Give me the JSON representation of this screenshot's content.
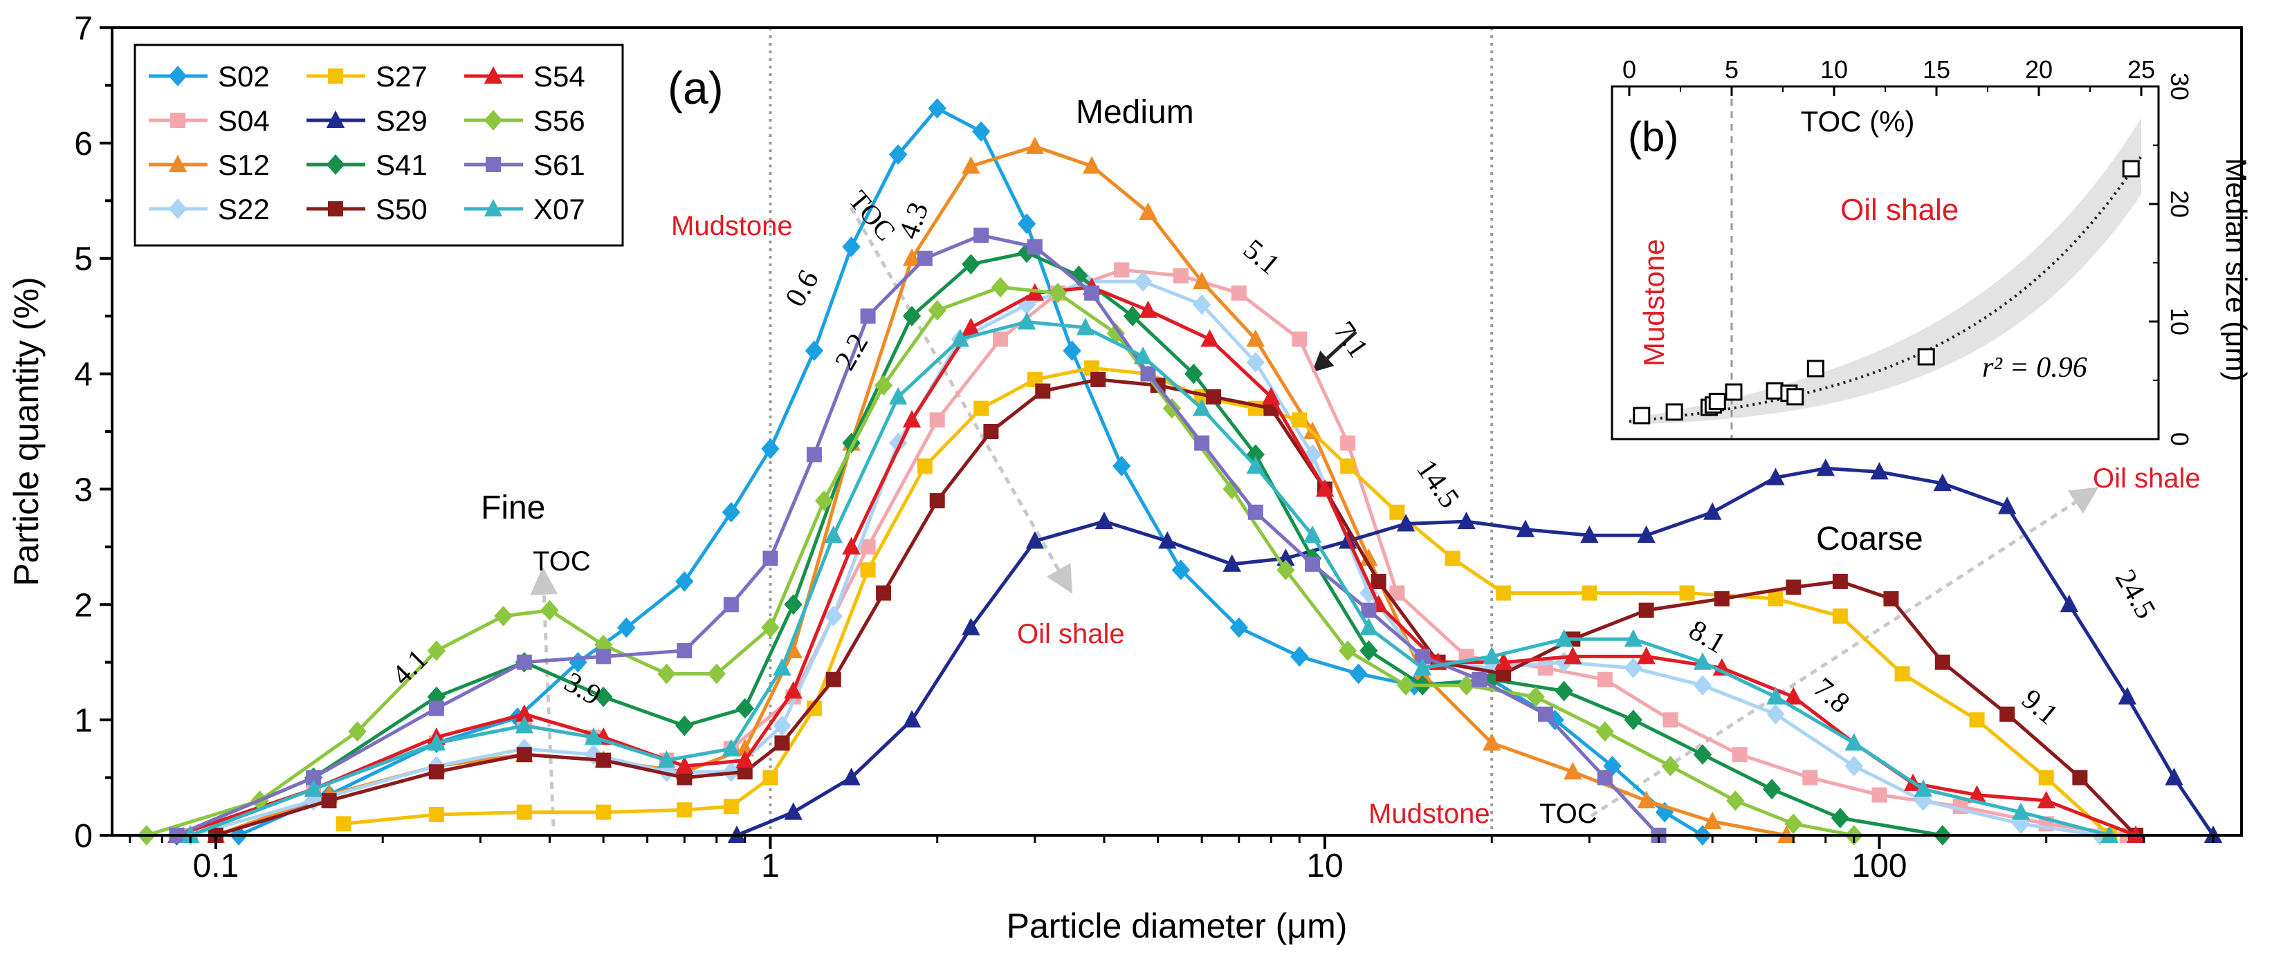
{
  "chart_data": [
    {
      "type": "line",
      "panel_label": "(a)",
      "xlabel": "Particle diameter (μm)",
      "ylabel": "Particle quantity (%)",
      "xscale": "log",
      "xlim": [
        0.065,
        450
      ],
      "ylim": [
        0,
        7
      ],
      "xticks": [
        0.1,
        1,
        10,
        100
      ],
      "xtick_labels": [
        "0.1",
        "1",
        "10",
        "100"
      ],
      "yticks": [
        0,
        1,
        2,
        3,
        4,
        5,
        6,
        7
      ],
      "ytick_labels": [
        "0",
        "1",
        "2",
        "3",
        "4",
        "5",
        "6",
        "7"
      ],
      "vlines": [
        1,
        20
      ],
      "grid": false,
      "legend": {
        "placement": "top-left",
        "columns": 3
      },
      "annotations": {
        "regions": [
          "Fine",
          "Medium",
          "Coarse"
        ],
        "toc_word": "TOC",
        "mudstone": "Mudstone",
        "oil_shale": "Oil shale",
        "toc_values": [
          {
            "text": "4.1",
            "x": 0.23,
            "y": 1.4
          },
          {
            "text": "3.9",
            "x": 0.45,
            "y": 1.2
          },
          {
            "text": "0.6",
            "x": 1.18,
            "y": 4.7
          },
          {
            "text": "2.2",
            "x": 1.45,
            "y": 4.15
          },
          {
            "text": "4.3",
            "x": 1.88,
            "y": 5.3
          },
          {
            "text": "5.1",
            "x": 7.5,
            "y": 4.95
          },
          {
            "text": "7.1",
            "x": 10.8,
            "y": 4.25
          },
          {
            "text": "14.5",
            "x": 15.5,
            "y": 3.0
          },
          {
            "text": "8.1",
            "x": 48,
            "y": 1.65
          },
          {
            "text": "7.8",
            "x": 80,
            "y": 1.15
          },
          {
            "text": "9.1",
            "x": 190,
            "y": 1.05
          },
          {
            "text": "24.5",
            "x": 280,
            "y": 2.05
          }
        ]
      },
      "series": [
        {
          "name": "S02",
          "color": "#1ba1e2",
          "marker": "diamond",
          "x": [
            0.11,
            0.16,
            0.25,
            0.35,
            0.45,
            0.55,
            0.7,
            0.85,
            1.0,
            1.2,
            1.4,
            1.7,
            2.0,
            2.4,
            2.9,
            3.5,
            4.3,
            5.5,
            7.0,
            9.0,
            11.5,
            14.5,
            20,
            26,
            33,
            41,
            48
          ],
          "y": [
            0.0,
            0.35,
            0.8,
            1.02,
            1.5,
            1.8,
            2.2,
            2.8,
            3.35,
            4.2,
            5.1,
            5.9,
            6.3,
            6.1,
            5.3,
            4.2,
            3.2,
            2.3,
            1.8,
            1.55,
            1.4,
            1.3,
            1.35,
            1.0,
            0.6,
            0.2,
            0.0
          ]
        },
        {
          "name": "S04",
          "color": "#f4a6ad",
          "marker": "square",
          "x": [
            0.09,
            0.15,
            0.25,
            0.36,
            0.48,
            0.65,
            0.85,
            1.1,
            1.5,
            2.0,
            2.6,
            3.3,
            4.3,
            5.5,
            7.0,
            9.0,
            11,
            13.5,
            18,
            25,
            32,
            42,
            56,
            75,
            100,
            140,
            200,
            280
          ],
          "y": [
            0.0,
            0.4,
            0.8,
            0.95,
            0.85,
            0.65,
            0.75,
            1.2,
            2.5,
            3.6,
            4.3,
            4.7,
            4.9,
            4.85,
            4.7,
            4.3,
            3.4,
            2.1,
            1.55,
            1.45,
            1.35,
            1.0,
            0.7,
            0.5,
            0.35,
            0.25,
            0.1,
            0.0
          ]
        },
        {
          "name": "S12",
          "color": "#f08a24",
          "marker": "triangle",
          "x": [
            0.1,
            0.16,
            0.25,
            0.36,
            0.5,
            0.7,
            0.9,
            1.1,
            1.4,
            1.8,
            2.3,
            3.0,
            3.8,
            4.8,
            6.0,
            7.5,
            9.5,
            12,
            15,
            20,
            28,
            38,
            50,
            68
          ],
          "y": [
            0.0,
            0.35,
            0.6,
            0.7,
            0.65,
            0.55,
            0.75,
            1.6,
            3.4,
            5.0,
            5.8,
            5.97,
            5.8,
            5.4,
            4.8,
            4.3,
            3.5,
            2.4,
            1.4,
            0.8,
            0.55,
            0.3,
            0.12,
            0.0
          ]
        },
        {
          "name": "S22",
          "color": "#a9d4f5",
          "marker": "diamond",
          "x": [
            0.09,
            0.15,
            0.25,
            0.36,
            0.48,
            0.65,
            0.85,
            1.05,
            1.3,
            1.7,
            2.2,
            2.9,
            3.7,
            4.7,
            6.0,
            7.5,
            9.5,
            12,
            15,
            20,
            27,
            36,
            48,
            65,
            90,
            120,
            180,
            250
          ],
          "y": [
            0.0,
            0.3,
            0.6,
            0.75,
            0.7,
            0.55,
            0.55,
            0.95,
            1.9,
            3.4,
            4.3,
            4.6,
            4.8,
            4.8,
            4.6,
            4.1,
            3.3,
            2.1,
            1.5,
            1.45,
            1.5,
            1.45,
            1.3,
            1.05,
            0.6,
            0.3,
            0.1,
            0.0
          ]
        },
        {
          "name": "S27",
          "color": "#f5c000",
          "marker": "square",
          "x": [
            0.17,
            0.25,
            0.36,
            0.5,
            0.7,
            0.85,
            1.0,
            1.2,
            1.5,
            1.9,
            2.4,
            3.0,
            3.8,
            4.8,
            6.0,
            7.5,
            9.0,
            11,
            13.5,
            17,
            21,
            30,
            45,
            65,
            85,
            110,
            150,
            200,
            260
          ],
          "y": [
            0.1,
            0.18,
            0.2,
            0.2,
            0.22,
            0.25,
            0.5,
            1.1,
            2.3,
            3.2,
            3.7,
            3.95,
            4.05,
            4.0,
            3.8,
            3.7,
            3.6,
            3.2,
            2.8,
            2.4,
            2.1,
            2.1,
            2.1,
            2.05,
            1.9,
            1.4,
            1.0,
            0.5,
            0.0
          ]
        },
        {
          "name": "S29",
          "color": "#1f2a8f",
          "marker": "triangle",
          "x": [
            0.87,
            1.1,
            1.4,
            1.8,
            2.3,
            3.0,
            4.0,
            5.2,
            6.8,
            8.5,
            11,
            14,
            18,
            23,
            30,
            38,
            50,
            65,
            80,
            100,
            130,
            170,
            220,
            280,
            340,
            400
          ],
          "y": [
            0.0,
            0.2,
            0.5,
            1.0,
            1.8,
            2.55,
            2.72,
            2.55,
            2.35,
            2.4,
            2.55,
            2.7,
            2.72,
            2.65,
            2.6,
            2.6,
            2.8,
            3.1,
            3.18,
            3.15,
            3.05,
            2.85,
            2.0,
            1.2,
            0.5,
            0.0
          ]
        },
        {
          "name": "S41",
          "color": "#16914b",
          "marker": "diamond",
          "x": [
            0.085,
            0.15,
            0.25,
            0.36,
            0.5,
            0.7,
            0.9,
            1.1,
            1.4,
            1.8,
            2.3,
            2.9,
            3.6,
            4.5,
            5.8,
            7.5,
            9.5,
            12,
            15,
            20,
            27,
            36,
            48,
            64,
            85,
            130
          ],
          "y": [
            0.0,
            0.5,
            1.2,
            1.5,
            1.2,
            0.95,
            1.1,
            2.0,
            3.4,
            4.5,
            4.95,
            5.05,
            4.85,
            4.5,
            4.0,
            3.3,
            2.4,
            1.6,
            1.3,
            1.35,
            1.25,
            1.0,
            0.7,
            0.4,
            0.15,
            0.0
          ]
        },
        {
          "name": "S50",
          "color": "#8b1a1a",
          "marker": "square",
          "x": [
            0.1,
            0.16,
            0.25,
            0.36,
            0.5,
            0.7,
            0.9,
            1.05,
            1.3,
            1.6,
            2.0,
            2.5,
            3.1,
            3.9,
            5.0,
            6.3,
            8.0,
            10,
            12.5,
            16,
            21,
            28,
            38,
            52,
            70,
            85,
            105,
            130,
            170,
            230,
            290
          ],
          "y": [
            0.0,
            0.3,
            0.55,
            0.7,
            0.65,
            0.5,
            0.55,
            0.8,
            1.35,
            2.1,
            2.9,
            3.5,
            3.85,
            3.95,
            3.9,
            3.8,
            3.7,
            3.0,
            2.2,
            1.5,
            1.4,
            1.7,
            1.95,
            2.05,
            2.15,
            2.2,
            2.05,
            1.5,
            1.05,
            0.5,
            0.0
          ]
        },
        {
          "name": "S54",
          "color": "#e01b24",
          "marker": "triangle",
          "x": [
            0.085,
            0.15,
            0.25,
            0.36,
            0.5,
            0.7,
            0.9,
            1.1,
            1.4,
            1.8,
            2.3,
            3.0,
            3.8,
            4.8,
            6.2,
            8.0,
            10,
            12.5,
            16,
            21,
            28,
            38,
            52,
            70,
            90,
            115,
            150,
            200,
            290
          ],
          "y": [
            0.0,
            0.4,
            0.85,
            1.05,
            0.85,
            0.6,
            0.65,
            1.25,
            2.5,
            3.6,
            4.4,
            4.7,
            4.75,
            4.55,
            4.3,
            3.8,
            3.0,
            2.0,
            1.5,
            1.5,
            1.55,
            1.55,
            1.45,
            1.2,
            0.8,
            0.45,
            0.35,
            0.3,
            0.0
          ]
        },
        {
          "name": "S56",
          "color": "#8dc63f",
          "marker": "diamond",
          "x": [
            0.075,
            0.12,
            0.18,
            0.25,
            0.33,
            0.4,
            0.5,
            0.65,
            0.8,
            1.0,
            1.25,
            1.6,
            2.0,
            2.6,
            3.3,
            4.2,
            5.3,
            6.8,
            8.5,
            11,
            14,
            18,
            24,
            32,
            42,
            55,
            70,
            90
          ],
          "y": [
            0.0,
            0.3,
            0.9,
            1.6,
            1.9,
            1.95,
            1.65,
            1.4,
            1.4,
            1.8,
            2.9,
            3.9,
            4.55,
            4.75,
            4.7,
            4.35,
            3.7,
            3.0,
            2.3,
            1.6,
            1.3,
            1.3,
            1.2,
            0.9,
            0.6,
            0.3,
            0.1,
            0.0
          ]
        },
        {
          "name": "S61",
          "color": "#7b6fc2",
          "marker": "square",
          "x": [
            0.085,
            0.15,
            0.25,
            0.36,
            0.5,
            0.7,
            0.85,
            1.0,
            1.2,
            1.5,
            1.9,
            2.4,
            3.0,
            3.8,
            4.8,
            6.0,
            7.5,
            9.5,
            12,
            15,
            19,
            25,
            32,
            40
          ],
          "y": [
            0.0,
            0.5,
            1.1,
            1.5,
            1.55,
            1.6,
            2.0,
            2.4,
            3.3,
            4.5,
            5.0,
            5.2,
            5.1,
            4.7,
            4.0,
            3.4,
            2.8,
            2.35,
            1.95,
            1.55,
            1.35,
            1.05,
            0.5,
            0.0
          ]
        },
        {
          "name": "X07",
          "color": "#35b5c4",
          "marker": "triangle",
          "x": [
            0.09,
            0.15,
            0.25,
            0.36,
            0.48,
            0.65,
            0.85,
            1.05,
            1.3,
            1.7,
            2.2,
            2.9,
            3.7,
            4.7,
            6.0,
            7.5,
            9.5,
            12,
            15,
            20,
            27,
            36,
            48,
            65,
            90,
            120,
            180,
            260
          ],
          "y": [
            0.0,
            0.4,
            0.8,
            0.95,
            0.85,
            0.65,
            0.75,
            1.45,
            2.6,
            3.8,
            4.3,
            4.45,
            4.4,
            4.15,
            3.7,
            3.2,
            2.6,
            1.8,
            1.45,
            1.55,
            1.7,
            1.7,
            1.5,
            1.2,
            0.8,
            0.4,
            0.2,
            0.0
          ]
        }
      ]
    },
    {
      "type": "scatter",
      "panel_label": "(b)",
      "xlabel": "TOC (%)",
      "ylabel": "Median size (μm)",
      "xlim": [
        0,
        25
      ],
      "ylim": [
        0,
        30
      ],
      "xticks": [
        0,
        5,
        10,
        15,
        20,
        25
      ],
      "xtick_labels": [
        "0",
        "5",
        "10",
        "15",
        "20",
        "25"
      ],
      "yticks": [
        0,
        10,
        20,
        30
      ],
      "ytick_labels": [
        "0",
        "10",
        "20",
        "30"
      ],
      "xaxis_position": "top",
      "yaxis_position": "right",
      "vline": 5,
      "regions": [
        "Mudstone",
        "Oil shale"
      ],
      "r2_label": "r² = 0.96",
      "points": [
        {
          "x": 0.6,
          "y": 2.0
        },
        {
          "x": 2.2,
          "y": 2.3
        },
        {
          "x": 3.9,
          "y": 2.7
        },
        {
          "x": 4.1,
          "y": 2.9
        },
        {
          "x": 4.3,
          "y": 3.2
        },
        {
          "x": 5.1,
          "y": 4.0
        },
        {
          "x": 7.1,
          "y": 4.1
        },
        {
          "x": 7.8,
          "y": 3.9
        },
        {
          "x": 8.1,
          "y": 3.6
        },
        {
          "x": 9.1,
          "y": 6.0
        },
        {
          "x": 14.5,
          "y": 7.0
        },
        {
          "x": 24.5,
          "y": 23.0
        }
      ],
      "fit": {
        "type": "exponential",
        "a": 1.5,
        "b": 0.111
      }
    }
  ]
}
